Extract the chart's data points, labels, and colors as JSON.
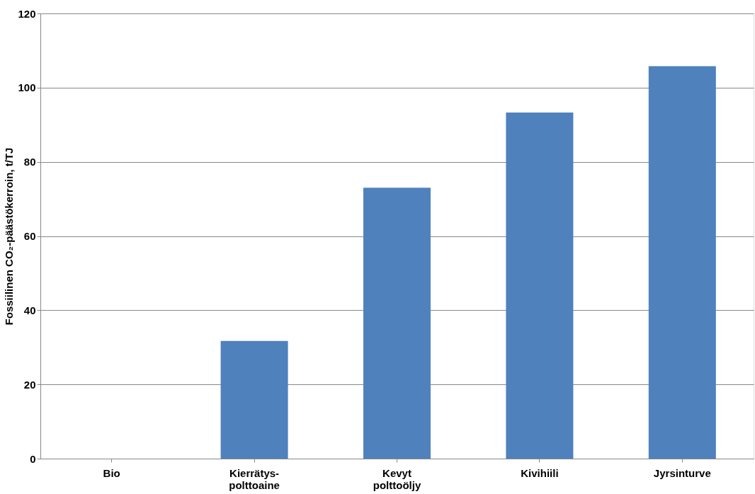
{
  "chart_data": {
    "type": "bar",
    "ylabel": "Fossiilinen CO₂-päästökerroin, t/TJ",
    "categories": [
      "Bio",
      "Kierrätys-polttoaine",
      "Kevyt polttoöljy",
      "Kivihiili",
      "Jyrsinturve"
    ],
    "values": [
      0,
      31.7,
      73.0,
      93.3,
      105.8
    ],
    "color": "#4f81bd",
    "ylim": [
      0,
      120
    ],
    "yticks": [
      0,
      20,
      40,
      60,
      80,
      100,
      120
    ],
    "grid": "y"
  }
}
